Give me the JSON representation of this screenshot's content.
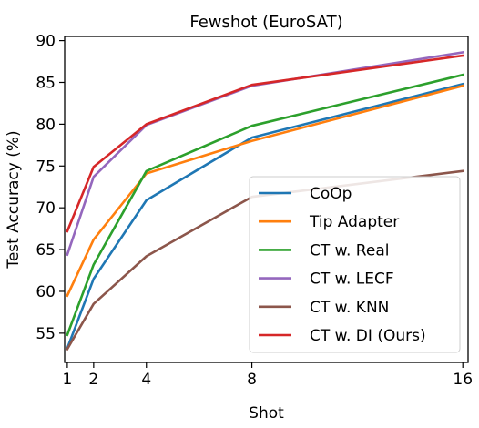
{
  "chart_data": {
    "type": "line",
    "title": "Fewshot (EuroSAT)",
    "xlabel": "Shot",
    "ylabel": "Test Accuracy (%)",
    "x": [
      1,
      2,
      4,
      8,
      16
    ],
    "x_ticks": [
      "1",
      "2",
      "4",
      "8",
      "16"
    ],
    "y_ticks": [
      "55",
      "60",
      "65",
      "70",
      "75",
      "80",
      "85",
      "90"
    ],
    "xlim": [
      0.9,
      16.2
    ],
    "ylim": [
      51.5,
      90.5
    ],
    "grid": false,
    "legend_position": "lower-right",
    "series": [
      {
        "name": "CoOp",
        "color": "#1f77b4",
        "values": [
          53.2,
          61.5,
          70.9,
          78.4,
          84.8
        ]
      },
      {
        "name": "Tip Adapter",
        "color": "#ff7f0e",
        "values": [
          59.5,
          66.2,
          74.1,
          78.0,
          84.6
        ]
      },
      {
        "name": "CT w. Real",
        "color": "#2ca02c",
        "values": [
          54.8,
          63.2,
          74.4,
          79.8,
          85.9
        ]
      },
      {
        "name": "CT w. LECF",
        "color": "#9467bd",
        "values": [
          64.4,
          73.7,
          79.9,
          84.6,
          88.6
        ]
      },
      {
        "name": "CT w. KNN",
        "color": "#8c564b",
        "values": [
          53.1,
          58.5,
          64.2,
          71.3,
          74.4
        ]
      },
      {
        "name": "CT w. DI (Ours)",
        "color": "#d62728",
        "values": [
          67.2,
          74.9,
          80.0,
          84.7,
          88.2
        ]
      }
    ]
  }
}
